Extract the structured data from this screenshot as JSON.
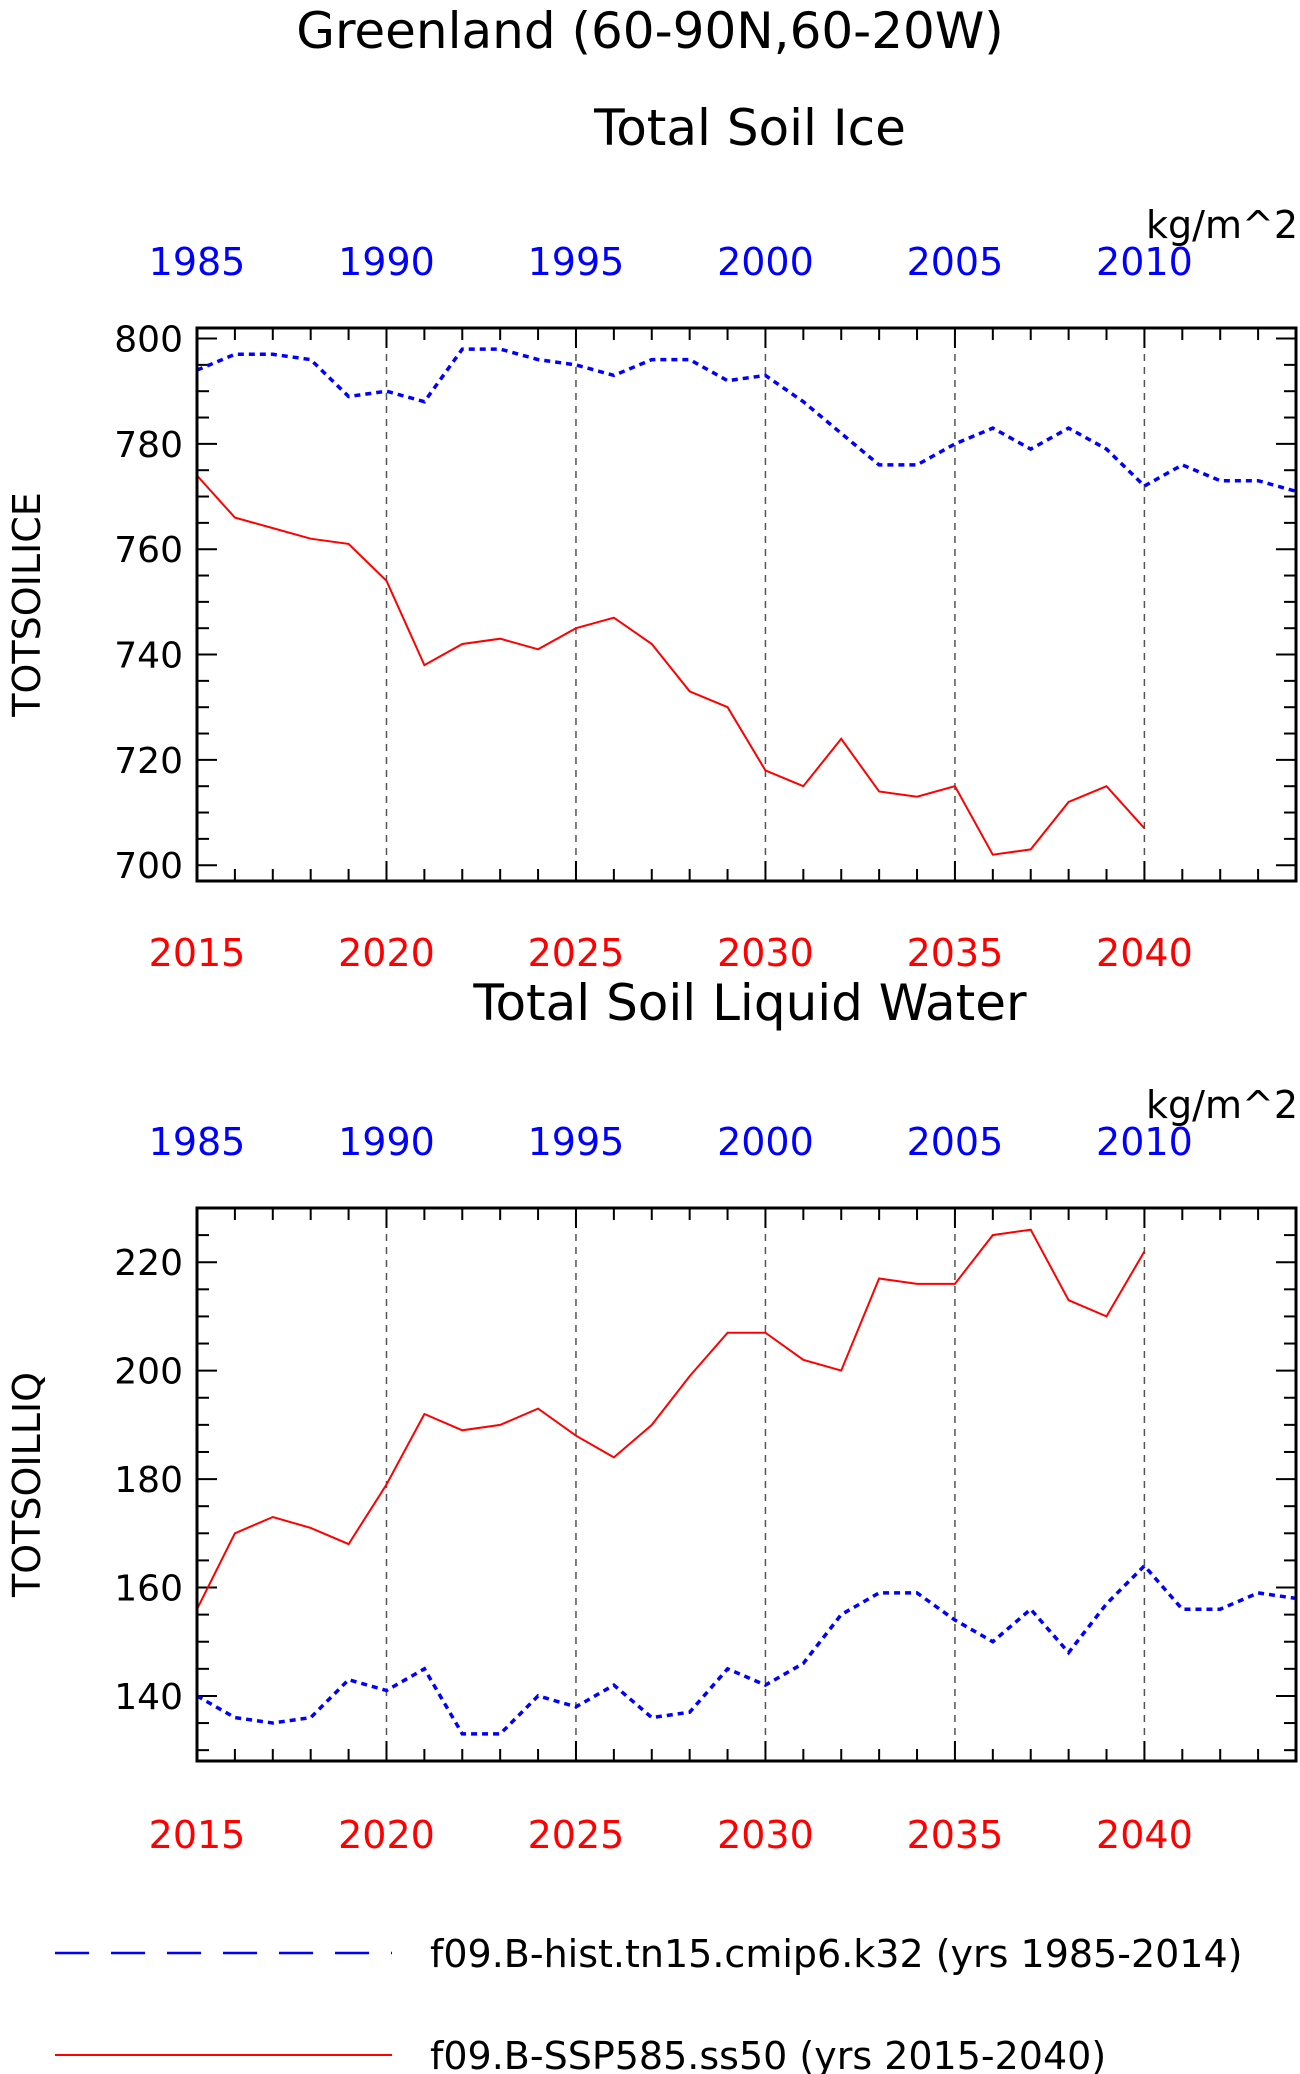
{
  "page": {
    "title_line1": "Greenland (60-90N,60-20W)",
    "legend": [
      {
        "label": "f09.B-hist.tn15.cmip6.k32 (yrs 1985-2014)",
        "color": "#0000ff",
        "style": "dashed"
      },
      {
        "label": "f09.B-SSP585.ss50 (yrs 2015-2040)",
        "color": "#ff0000",
        "style": "solid"
      }
    ]
  },
  "chart_data": [
    {
      "type": "line",
      "title": "Total Soil Ice",
      "units": "kg/m^2",
      "ylabel": "TOTSOILICE",
      "ylim": [
        697,
        802
      ],
      "yticks": [
        700,
        720,
        740,
        760,
        780,
        800
      ],
      "bottom_axis": {
        "range": [
          2015,
          2044
        ],
        "ticks": [
          2015,
          2020,
          2025,
          2030,
          2035,
          2040
        ],
        "color": "#ff0000"
      },
      "top_axis": {
        "range": [
          1985,
          2014
        ],
        "ticks": [
          1985,
          1990,
          1995,
          2000,
          2005,
          2010
        ],
        "color": "#0000ff"
      },
      "grid": "dashed vertical at major ticks",
      "series": [
        {
          "name": "f09.B-hist.tn15.cmip6.k32 (yrs 1985-2014)",
          "axis": "top",
          "color": "#0000ff",
          "style": "dashed",
          "x": [
            1985,
            1986,
            1987,
            1988,
            1989,
            1990,
            1991,
            1992,
            1993,
            1994,
            1995,
            1996,
            1997,
            1998,
            1999,
            2000,
            2001,
            2002,
            2003,
            2004,
            2005,
            2006,
            2007,
            2008,
            2009,
            2010,
            2011,
            2012,
            2013,
            2014
          ],
          "y": [
            794,
            797,
            797,
            796,
            789,
            790,
            788,
            798,
            798,
            796,
            795,
            793,
            796,
            796,
            792,
            793,
            788,
            782,
            776,
            776,
            780,
            783,
            779,
            783,
            779,
            772,
            776,
            773,
            773,
            771
          ]
        },
        {
          "name": "f09.B-SSP585.ss50 (yrs 2015-2040)",
          "axis": "bottom",
          "color": "#ff0000",
          "style": "solid",
          "x": [
            2015,
            2016,
            2017,
            2018,
            2019,
            2020,
            2021,
            2022,
            2023,
            2024,
            2025,
            2026,
            2027,
            2028,
            2029,
            2030,
            2031,
            2032,
            2033,
            2034,
            2035,
            2036,
            2037,
            2038,
            2039,
            2040
          ],
          "y": [
            774,
            766,
            764,
            762,
            761,
            754,
            738,
            742,
            743,
            741,
            745,
            747,
            742,
            733,
            730,
            718,
            715,
            724,
            714,
            713,
            715,
            702,
            703,
            712,
            715,
            707
          ]
        }
      ]
    },
    {
      "type": "line",
      "title": "Total Soil Liquid Water",
      "units": "kg/m^2",
      "ylabel": "TOTSOILLIQ",
      "ylim": [
        128,
        230
      ],
      "yticks": [
        140,
        160,
        180,
        200,
        220
      ],
      "bottom_axis": {
        "range": [
          2015,
          2044
        ],
        "ticks": [
          2015,
          2020,
          2025,
          2030,
          2035,
          2040
        ],
        "color": "#ff0000"
      },
      "top_axis": {
        "range": [
          1985,
          2014
        ],
        "ticks": [
          1985,
          1990,
          1995,
          2000,
          2005,
          2010
        ],
        "color": "#0000ff"
      },
      "grid": "dashed vertical at major ticks",
      "series": [
        {
          "name": "f09.B-hist.tn15.cmip6.k32 (yrs 1985-2014)",
          "axis": "top",
          "color": "#0000ff",
          "style": "dashed",
          "x": [
            1985,
            1986,
            1987,
            1988,
            1989,
            1990,
            1991,
            1992,
            1993,
            1994,
            1995,
            1996,
            1997,
            1998,
            1999,
            2000,
            2001,
            2002,
            2003,
            2004,
            2005,
            2006,
            2007,
            2008,
            2009,
            2010,
            2011,
            2012,
            2013,
            2014
          ],
          "y": [
            140,
            136,
            135,
            136,
            143,
            141,
            145,
            133,
            133,
            140,
            138,
            142,
            136,
            137,
            145,
            142,
            146,
            155,
            159,
            159,
            154,
            150,
            156,
            148,
            157,
            164,
            156,
            156,
            159,
            158
          ]
        },
        {
          "name": "f09.B-SSP585.ss50 (yrs 2015-2040)",
          "axis": "bottom",
          "color": "#ff0000",
          "style": "solid",
          "x": [
            2015,
            2016,
            2017,
            2018,
            2019,
            2020,
            2021,
            2022,
            2023,
            2024,
            2025,
            2026,
            2027,
            2028,
            2029,
            2030,
            2031,
            2032,
            2033,
            2034,
            2035,
            2036,
            2037,
            2038,
            2039,
            2040
          ],
          "y": [
            156,
            170,
            173,
            171,
            168,
            179,
            192,
            189,
            190,
            193,
            188,
            184,
            190,
            199,
            207,
            207,
            202,
            200,
            217,
            216,
            216,
            225,
            226,
            213,
            210,
            222
          ]
        }
      ]
    }
  ]
}
